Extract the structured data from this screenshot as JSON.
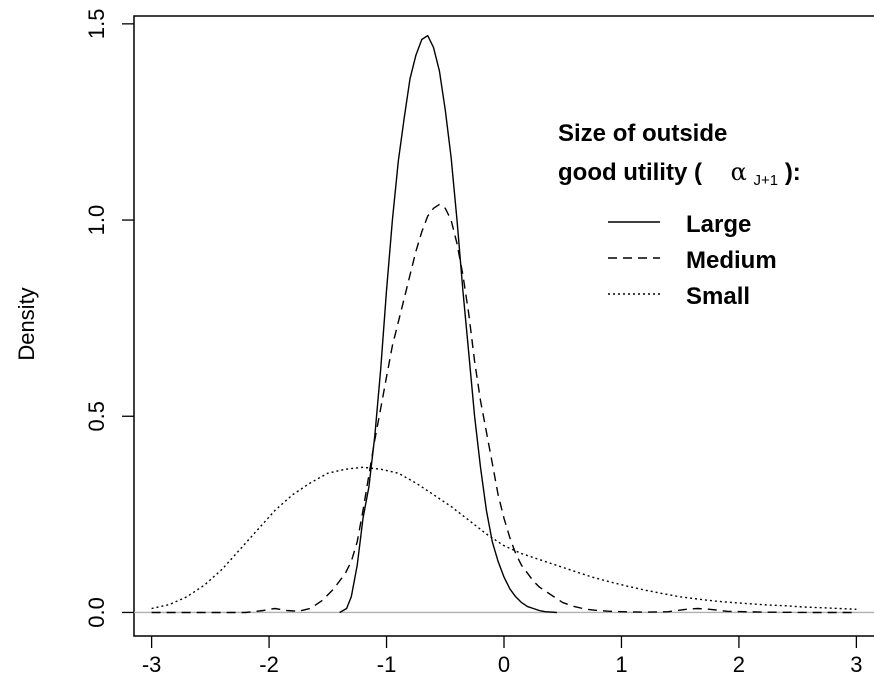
{
  "chart_data": {
    "type": "line",
    "title": "",
    "xlabel": "",
    "ylabel": "Density",
    "xlim": [
      -3.15,
      3.15
    ],
    "ylim": [
      -0.06,
      1.52
    ],
    "xticks": [
      -3,
      -2,
      -1,
      0,
      1,
      2,
      3
    ],
    "xtick_labels": [
      "-3",
      "-2",
      "-1",
      "0",
      "1",
      "2",
      "3"
    ],
    "yticks": [
      0.0,
      0.5,
      1.0,
      1.5
    ],
    "ytick_labels": [
      "0.0",
      "0.5",
      "1.0",
      "1.5"
    ],
    "grid": false,
    "baseline": {
      "y": 0,
      "color": "#b0b0b0"
    },
    "legend": {
      "title_line1": "Size of outside",
      "title_line2_prefix": "good utility (",
      "title_symbol": "α",
      "title_subscript": "J+1",
      "title_line2_suffix": "):",
      "placement": "top-right"
    },
    "series": [
      {
        "name": "Large",
        "dash": "solid",
        "x": [
          -1.4,
          -1.34,
          -1.3,
          -1.25,
          -1.2,
          -1.15,
          -1.1,
          -1.05,
          -1.0,
          -0.95,
          -0.9,
          -0.85,
          -0.8,
          -0.75,
          -0.7,
          -0.65,
          -0.6,
          -0.55,
          -0.5,
          -0.45,
          -0.4,
          -0.35,
          -0.3,
          -0.25,
          -0.2,
          -0.15,
          -0.1,
          -0.05,
          0.0,
          0.05,
          0.1,
          0.15,
          0.2,
          0.25,
          0.3,
          0.35,
          0.4,
          0.45
        ],
        "y": [
          0.0,
          0.01,
          0.04,
          0.12,
          0.24,
          0.32,
          0.45,
          0.62,
          0.82,
          1.0,
          1.15,
          1.26,
          1.36,
          1.42,
          1.46,
          1.47,
          1.44,
          1.38,
          1.28,
          1.16,
          1.0,
          0.82,
          0.66,
          0.5,
          0.37,
          0.26,
          0.18,
          0.13,
          0.09,
          0.06,
          0.04,
          0.025,
          0.015,
          0.01,
          0.005,
          0.002,
          0.001,
          0.0
        ]
      },
      {
        "name": "Medium",
        "dash": "dashed",
        "x": [
          -3.0,
          -2.6,
          -2.2,
          -2.05,
          -1.95,
          -1.85,
          -1.75,
          -1.65,
          -1.55,
          -1.45,
          -1.35,
          -1.3,
          -1.25,
          -1.2,
          -1.15,
          -1.1,
          -1.05,
          -1.0,
          -0.95,
          -0.9,
          -0.85,
          -0.8,
          -0.75,
          -0.7,
          -0.65,
          -0.6,
          -0.55,
          -0.5,
          -0.45,
          -0.4,
          -0.35,
          -0.3,
          -0.25,
          -0.2,
          -0.15,
          -0.1,
          -0.05,
          0.0,
          0.05,
          0.1,
          0.15,
          0.2,
          0.25,
          0.3,
          0.35,
          0.4,
          0.45,
          0.5,
          0.6,
          0.7,
          0.8,
          0.9,
          1.0,
          1.2,
          1.4,
          1.55,
          1.65,
          1.75,
          1.9,
          2.2,
          2.6,
          3.0
        ],
        "y": [
          0.0,
          0.0,
          0.0,
          0.005,
          0.01,
          0.005,
          0.003,
          0.01,
          0.03,
          0.06,
          0.1,
          0.13,
          0.18,
          0.26,
          0.35,
          0.44,
          0.52,
          0.6,
          0.68,
          0.74,
          0.8,
          0.86,
          0.92,
          0.97,
          1.01,
          1.03,
          1.04,
          1.03,
          1.0,
          0.94,
          0.86,
          0.76,
          0.64,
          0.54,
          0.46,
          0.38,
          0.3,
          0.24,
          0.19,
          0.15,
          0.12,
          0.1,
          0.08,
          0.065,
          0.055,
          0.045,
          0.035,
          0.025,
          0.015,
          0.008,
          0.005,
          0.003,
          0.002,
          0.001,
          0.002,
          0.008,
          0.01,
          0.008,
          0.003,
          0.001,
          0.0,
          0.0
        ]
      },
      {
        "name": "Small",
        "dash": "dotted",
        "x": [
          -3.0,
          -2.85,
          -2.7,
          -2.55,
          -2.4,
          -2.25,
          -2.1,
          -1.95,
          -1.8,
          -1.65,
          -1.5,
          -1.35,
          -1.2,
          -1.05,
          -0.9,
          -0.75,
          -0.6,
          -0.45,
          -0.3,
          -0.15,
          0.0,
          0.15,
          0.3,
          0.45,
          0.6,
          0.75,
          0.9,
          1.05,
          1.2,
          1.35,
          1.5,
          1.65,
          1.8,
          1.95,
          2.1,
          2.25,
          2.4,
          2.55,
          2.7,
          2.85,
          3.0
        ],
        "y": [
          0.01,
          0.02,
          0.04,
          0.07,
          0.11,
          0.16,
          0.21,
          0.26,
          0.3,
          0.33,
          0.355,
          0.365,
          0.37,
          0.365,
          0.355,
          0.33,
          0.3,
          0.27,
          0.235,
          0.2,
          0.17,
          0.15,
          0.135,
          0.12,
          0.105,
          0.09,
          0.078,
          0.067,
          0.057,
          0.048,
          0.04,
          0.034,
          0.029,
          0.025,
          0.022,
          0.019,
          0.017,
          0.014,
          0.012,
          0.01,
          0.008
        ]
      }
    ]
  }
}
